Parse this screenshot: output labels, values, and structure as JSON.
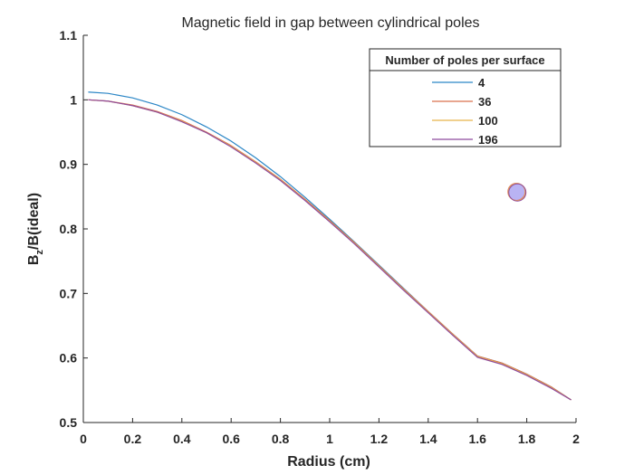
{
  "chart_data": {
    "type": "line",
    "title": "Magnetic field in gap between cylindrical poles",
    "xlabel": "Radius (cm)",
    "ylabel": {
      "main": "B",
      "sub": "z",
      "rest": "/B(ideal)"
    },
    "xlim": [
      0,
      2
    ],
    "ylim": [
      0.5,
      1.1
    ],
    "xticks": [
      0,
      0.2,
      0.4,
      0.6,
      0.8,
      1,
      1.2,
      1.4,
      1.6,
      1.8,
      2
    ],
    "xtick_labels": [
      "0",
      "0.2",
      "0.4",
      "0.6",
      "0.8",
      "1",
      "1.2",
      "1.4",
      "1.6",
      "1.8",
      "2"
    ],
    "yticks": [
      0.5,
      0.6,
      0.7,
      0.8,
      0.9,
      1.0,
      1.1
    ],
    "ytick_labels": [
      "0.5",
      "0.6",
      "0.7",
      "0.8",
      "0.9",
      "1",
      "1.1"
    ],
    "grid": false,
    "legend": {
      "title": "Number of poles per surface",
      "location": "top-right"
    },
    "x": [
      0.02,
      0.1,
      0.2,
      0.3,
      0.4,
      0.5,
      0.6,
      0.7,
      0.8,
      0.9,
      1.0,
      1.1,
      1.2,
      1.3,
      1.4,
      1.5,
      1.6,
      1.7,
      1.8,
      1.9,
      1.98
    ],
    "series": [
      {
        "name": "4",
        "color": "#2b86c6",
        "values": [
          1.012,
          1.01,
          1.003,
          0.992,
          0.977,
          0.958,
          0.936,
          0.91,
          0.881,
          0.849,
          0.815,
          0.78,
          0.744,
          0.708,
          0.672,
          0.637,
          0.603,
          0.592,
          0.575,
          0.555,
          0.535
        ]
      },
      {
        "name": "36",
        "color": "#d9704e",
        "values": [
          1.0,
          0.998,
          0.992,
          0.982,
          0.968,
          0.95,
          0.929,
          0.904,
          0.877,
          0.846,
          0.813,
          0.779,
          0.743,
          0.707,
          0.672,
          0.637,
          0.603,
          0.592,
          0.575,
          0.555,
          0.535
        ]
      },
      {
        "name": "100",
        "color": "#e8b34a",
        "values": [
          1.0,
          0.998,
          0.991,
          0.981,
          0.967,
          0.949,
          0.928,
          0.903,
          0.876,
          0.845,
          0.812,
          0.778,
          0.742,
          0.706,
          0.671,
          0.636,
          0.602,
          0.591,
          0.574,
          0.554,
          0.535
        ]
      },
      {
        "name": "196",
        "color": "#8e4a9e",
        "values": [
          1.0,
          0.998,
          0.991,
          0.981,
          0.966,
          0.949,
          0.927,
          0.902,
          0.875,
          0.844,
          0.811,
          0.777,
          0.741,
          0.705,
          0.67,
          0.635,
          0.601,
          0.59,
          0.573,
          0.553,
          0.535
        ]
      }
    ],
    "annotations": [
      {
        "type": "marker",
        "shape": "circle",
        "x": 1.76,
        "y": 0.857,
        "fill": "#b9b3f3",
        "stroke_colors": [
          "#e07a6a",
          "#e8b34a",
          "#8e4a9e"
        ]
      }
    ]
  }
}
